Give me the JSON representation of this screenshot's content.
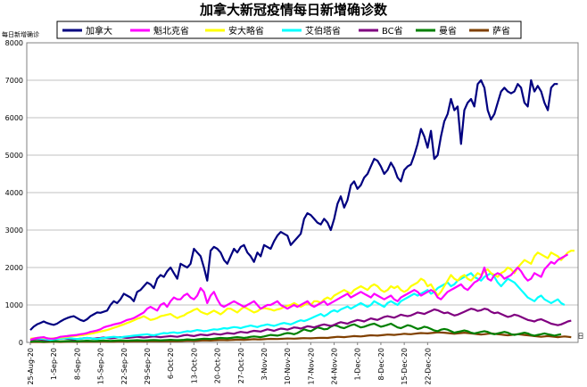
{
  "chart_data": {
    "type": "line",
    "title": "加拿大新冠疫情每日新增确诊数",
    "ylabel": "每日新增确诊",
    "xlabel": "日",
    "ylim": [
      0,
      8000
    ],
    "y_ticks": [
      0,
      1000,
      2000,
      3000,
      4000,
      5000,
      6000,
      7000,
      8000
    ],
    "x_ticks": [
      "25-Aug-20",
      "1-Sep-20",
      "8-Sep-20",
      "15-Sep-20",
      "22-Sep-20",
      "29-Sep-20",
      "6-Oct-20",
      "13-Oct-20",
      "20-Oct-20",
      "27-Oct-20",
      "3-Nov-20",
      "10-Nov-20",
      "17-Nov-20",
      "24-Nov-20",
      "1-Dec-20",
      "8-Dec-20",
      "15-Dec-20",
      "22-Dec-20"
    ],
    "grid": "horizontal",
    "legend_position": "top",
    "series": [
      {
        "name": "加拿大",
        "color": "#000080",
        "values": [
          330,
          420,
          480,
          520,
          560,
          520,
          490,
          470,
          500,
          560,
          610,
          650,
          680,
          700,
          650,
          600,
          570,
          620,
          700,
          750,
          800,
          790,
          820,
          850,
          1000,
          1100,
          1050,
          1150,
          1300,
          1250,
          1200,
          1100,
          1350,
          1400,
          1500,
          1600,
          1550,
          1450,
          1700,
          1800,
          1750,
          1900,
          2000,
          1850,
          1700,
          2100,
          2050,
          2000,
          2100,
          2500,
          2400,
          2300,
          2000,
          1650,
          2450,
          2550,
          2500,
          2400,
          2200,
          2100,
          2300,
          2500,
          2400,
          2550,
          2600,
          2400,
          2300,
          2150,
          2400,
          2300,
          2600,
          2550,
          2500,
          2700,
          2850,
          2950,
          2900,
          2850,
          2600,
          2700,
          2800,
          2900,
          3300,
          3450,
          3400,
          3300,
          3200,
          3150,
          3300,
          3200,
          3000,
          3300,
          3700,
          3900,
          3600,
          3800,
          4200,
          4300,
          4100,
          4200,
          4400,
          4500,
          4700,
          4900,
          4850,
          4700,
          4500,
          4600,
          4800,
          4650,
          4400,
          4300,
          4600,
          4700,
          4750,
          5000,
          5300,
          5700,
          5500,
          5200,
          5650,
          4900,
          5000,
          5500,
          5900,
          6100,
          6500,
          6200,
          6300,
          5300,
          6200,
          6400,
          6500,
          6300,
          6900,
          7000,
          6800,
          6200,
          5950,
          6100,
          6400,
          6700,
          6800,
          6700,
          6650,
          6700,
          6900,
          6800,
          6400,
          6300,
          7000,
          6700,
          6850,
          6700,
          6400,
          6200,
          6800,
          6900,
          6900
        ]
      },
      {
        "name": "魁北克省",
        "color": "#ff00ff",
        "values": [
          70,
          100,
          120,
          130,
          140,
          110,
          100,
          100,
          120,
          150,
          160,
          170,
          180,
          190,
          200,
          220,
          230,
          250,
          280,
          300,
          320,
          350,
          400,
          430,
          450,
          480,
          500,
          520,
          560,
          600,
          620,
          650,
          700,
          750,
          800,
          900,
          950,
          900,
          850,
          1000,
          1050,
          950,
          1100,
          1200,
          1150,
          1150,
          1250,
          1300,
          1200,
          1150,
          1250,
          1450,
          1350,
          1050,
          1250,
          1350,
          1150,
          1000,
          950,
          1000,
          1050,
          1100,
          1050,
          1000,
          950,
          1000,
          1050,
          1100,
          1000,
          900,
          950,
          1000,
          1000,
          1050,
          1100,
          1000,
          950,
          900,
          950,
          1000,
          950,
          1000,
          1050,
          1100,
          1000,
          950,
          1000,
          1050,
          1100,
          1000,
          1050,
          1100,
          1150,
          1200,
          1250,
          1300,
          1200,
          1250,
          1300,
          1350,
          1300,
          1250,
          1200,
          1300,
          1250,
          1200,
          1150,
          1200,
          1250,
          1150,
          1100,
          1200,
          1250,
          1300,
          1350,
          1400,
          1350,
          1250,
          1300,
          1350,
          1400,
          1350,
          1200,
          1150,
          1250,
          1350,
          1400,
          1450,
          1500,
          1550,
          1450,
          1400,
          1500,
          1600,
          1650,
          1750,
          2000,
          1700,
          1650,
          1800,
          1850,
          1800,
          1700,
          1750,
          1800,
          1900,
          2000,
          1900,
          1750,
          1650,
          1700,
          1850,
          1800,
          1750,
          1950,
          2050,
          2150,
          2100,
          2200,
          2250,
          2300,
          2350
        ]
      },
      {
        "name": "安大略省",
        "color": "#ffff00",
        "values": [
          100,
          110,
          120,
          130,
          120,
          110,
          100,
          110,
          120,
          130,
          140,
          150,
          160,
          170,
          180,
          190,
          200,
          220,
          230,
          250,
          270,
          290,
          310,
          330,
          360,
          390,
          420,
          450,
          480,
          520,
          550,
          590,
          630,
          660,
          700,
          650,
          600,
          620,
          650,
          700,
          720,
          740,
          760,
          700,
          650,
          690,
          720,
          780,
          820,
          870,
          900,
          820,
          780,
          750,
          800,
          850,
          800,
          750,
          820,
          900,
          900,
          850,
          800,
          880,
          950,
          900,
          850,
          800,
          830,
          900,
          920,
          900,
          880,
          850,
          880,
          900,
          950,
          980,
          1000,
          1050,
          1000,
          950,
          1000,
          1050,
          1000,
          1100,
          1100,
          1050,
          1150,
          1200,
          1150,
          1250,
          1300,
          1350,
          1400,
          1350,
          1300,
          1400,
          1450,
          1500,
          1450,
          1400,
          1500,
          1550,
          1500,
          1400,
          1350,
          1400,
          1500,
          1450,
          1500,
          1400,
          1350,
          1400,
          1500,
          1550,
          1600,
          1700,
          1650,
          1500,
          1550,
          1400,
          1250,
          1350,
          1500,
          1650,
          1800,
          1700,
          1650,
          1750,
          1800,
          1700,
          1650,
          1750,
          1850,
          1800,
          1900,
          1950,
          1850,
          1800,
          1750,
          1850,
          1900,
          2000,
          1950,
          1850,
          2000,
          2100,
          2200,
          2150,
          2100,
          2300,
          2400,
          2350,
          2300,
          2250,
          2400,
          2350,
          2300,
          2200,
          2300,
          2400,
          2450,
          2450
        ]
      },
      {
        "name": "艾伯塔省",
        "color": "#00ffff",
        "values": [
          90,
          100,
          110,
          100,
          90,
          80,
          70,
          80,
          90,
          100,
          110,
          120,
          110,
          100,
          90,
          100,
          110,
          120,
          110,
          100,
          90,
          110,
          120,
          130,
          140,
          150,
          140,
          130,
          150,
          160,
          170,
          180,
          190,
          200,
          210,
          220,
          200,
          190,
          210,
          230,
          250,
          240,
          260,
          270,
          250,
          260,
          280,
          300,
          290,
          310,
          330,
          320,
          300,
          310,
          330,
          350,
          340,
          360,
          380,
          370,
          390,
          410,
          400,
          380,
          410,
          430,
          450,
          430,
          410,
          440,
          460,
          480,
          460,
          440,
          470,
          500,
          520,
          500,
          480,
          520,
          560,
          590,
          570,
          600,
          640,
          680,
          720,
          760,
          700,
          750,
          820,
          860,
          820,
          880,
          920,
          960,
          900,
          950,
          1000,
          1050,
          1000,
          950,
          1000,
          1100,
          1050,
          1000,
          950,
          1050,
          1100,
          1050,
          1000,
          1100,
          1150,
          1200,
          1250,
          1300,
          1250,
          1300,
          1350,
          1400,
          1300,
          1350,
          1450,
          1500,
          1550,
          1600,
          1500,
          1550,
          1650,
          1700,
          1750,
          1800,
          1850,
          1750,
          1700,
          1650,
          1750,
          1800,
          1850,
          1750,
          1600,
          1500,
          1600,
          1700,
          1650,
          1600,
          1500,
          1400,
          1300,
          1200,
          1150,
          1100,
          1200,
          1250,
          1150,
          1100,
          1050,
          1100,
          1150,
          1050,
          1000
        ]
      },
      {
        "name": "BC省",
        "color": "#800080",
        "values": [
          70,
          80,
          90,
          80,
          70,
          60,
          70,
          80,
          90,
          100,
          110,
          100,
          90,
          80,
          90,
          100,
          110,
          120,
          110,
          100,
          110,
          120,
          130,
          120,
          110,
          120,
          130,
          140,
          130,
          120,
          130,
          140,
          150,
          140,
          130,
          140,
          150,
          160,
          150,
          140,
          150,
          160,
          170,
          160,
          150,
          170,
          190,
          200,
          180,
          170,
          190,
          210,
          200,
          190,
          210,
          230,
          220,
          210,
          230,
          250,
          240,
          230,
          260,
          280,
          270,
          260,
          290,
          310,
          300,
          290,
          320,
          350,
          330,
          310,
          340,
          370,
          360,
          340,
          370,
          400,
          390,
          370,
          400,
          430,
          420,
          400,
          430,
          460,
          480,
          460,
          440,
          470,
          510,
          540,
          520,
          500,
          540,
          570,
          600,
          580,
          560,
          600,
          640,
          620,
          600,
          640,
          680,
          700,
          680,
          660,
          700,
          740,
          720,
          700,
          720,
          760,
          800,
          780,
          760,
          800,
          840,
          880,
          860,
          820,
          780,
          800,
          760,
          720,
          740,
          780,
          820,
          860,
          900,
          880,
          840,
          860,
          900,
          880,
          820,
          780,
          800,
          760,
          720,
          680,
          700,
          740,
          720,
          680,
          640,
          600,
          580,
          560,
          600,
          620,
          580,
          540,
          500,
          480,
          460,
          480,
          520,
          560,
          580
        ]
      },
      {
        "name": "曼省",
        "color": "#008000",
        "values": [
          20,
          25,
          30,
          25,
          20,
          25,
          30,
          35,
          30,
          25,
          30,
          35,
          40,
          35,
          30,
          35,
          40,
          45,
          40,
          35,
          40,
          45,
          50,
          45,
          40,
          45,
          50,
          55,
          50,
          45,
          50,
          55,
          60,
          55,
          50,
          55,
          60,
          65,
          60,
          55,
          60,
          65,
          70,
          65,
          60,
          65,
          70,
          80,
          75,
          70,
          80,
          90,
          100,
          95,
          90,
          100,
          110,
          120,
          115,
          110,
          120,
          130,
          140,
          130,
          120,
          130,
          150,
          160,
          150,
          140,
          160,
          180,
          200,
          190,
          180,
          200,
          230,
          250,
          240,
          220,
          250,
          300,
          350,
          320,
          300,
          350,
          400,
          380,
          350,
          360,
          420,
          460,
          440,
          400,
          380,
          420,
          460,
          480,
          440,
          400,
          420,
          450,
          480,
          500,
          460,
          420,
          440,
          470,
          500,
          450,
          400,
          380,
          420,
          460,
          440,
          400,
          360,
          380,
          420,
          400,
          360,
          320,
          300,
          340,
          360,
          340,
          300,
          260,
          280,
          300,
          320,
          300,
          260,
          240,
          260,
          280,
          300,
          280,
          240,
          220,
          240,
          260,
          280,
          260,
          220,
          200,
          220,
          240,
          260,
          240,
          200,
          180,
          200,
          220,
          240,
          220,
          200,
          180,
          200,
          220
        ]
      },
      {
        "name": "萨省",
        "color": "#804000",
        "values": [
          10,
          12,
          15,
          12,
          10,
          12,
          15,
          18,
          15,
          12,
          15,
          18,
          20,
          18,
          15,
          18,
          20,
          22,
          20,
          18,
          20,
          22,
          25,
          22,
          20,
          22,
          25,
          28,
          25,
          22,
          25,
          28,
          30,
          28,
          25,
          28,
          30,
          32,
          30,
          28,
          30,
          32,
          35,
          32,
          30,
          35,
          40,
          45,
          42,
          40,
          45,
          50,
          55,
          52,
          50,
          55,
          60,
          65,
          62,
          60,
          65,
          70,
          75,
          72,
          70,
          75,
          80,
          85,
          82,
          80,
          85,
          90,
          95,
          92,
          90,
          95,
          100,
          105,
          102,
          100,
          105,
          110,
          115,
          112,
          110,
          115,
          120,
          125,
          122,
          120,
          130,
          140,
          150,
          145,
          140,
          150,
          160,
          170,
          165,
          160,
          170,
          180,
          190,
          185,
          180,
          190,
          200,
          210,
          205,
          200,
          210,
          220,
          230,
          225,
          220,
          230,
          240,
          250,
          245,
          240,
          250,
          260,
          270,
          265,
          260,
          250,
          240,
          230,
          240,
          250,
          260,
          250,
          240,
          230,
          220,
          210,
          220,
          230,
          240,
          230,
          220,
          210,
          200,
          190,
          200,
          210,
          220,
          210,
          200,
          190,
          180,
          170,
          160,
          150,
          160,
          170,
          160,
          150,
          140,
          150,
          160,
          150,
          140
        ]
      }
    ]
  }
}
